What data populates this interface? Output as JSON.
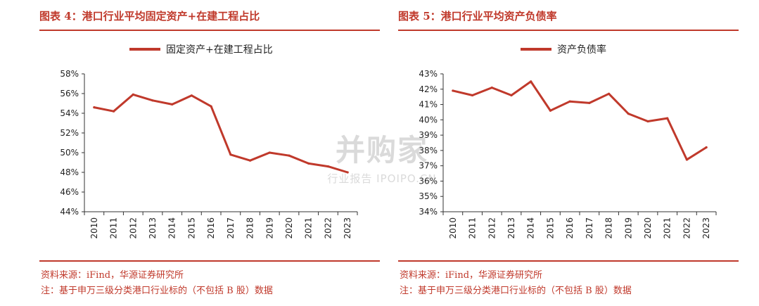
{
  "panels": [
    {
      "title": "图表 4：港口行业平均固定资产+在建工程占比",
      "legend": "固定资产+在建工程占比",
      "source": "资料来源：iFind，华源证券研究所",
      "note": "注：基于申万三级分类港口行业标的（不包括 B 股）数据"
    },
    {
      "title": "图表 5：港口行业平均资产负债率",
      "legend": "资产负债率",
      "source": "资料来源：iFind，华源证券研究所",
      "note": "注：基于申万三级分类港口行业标的（不包括 B 股）数据"
    }
  ],
  "watermark": {
    "main": "并购家",
    "sub": "行业报告 IPOIPO.CN"
  },
  "colors": {
    "series": "#c0392b",
    "accent": "#c0392b"
  },
  "chart_data": [
    {
      "type": "line",
      "title": "",
      "xlabel": "",
      "ylabel": "",
      "x": [
        "2010",
        "2011",
        "2012",
        "2013",
        "2014",
        "2015",
        "2016",
        "2017",
        "2018",
        "2019",
        "2020",
        "2021",
        "2022",
        "2023"
      ],
      "series": [
        {
          "name": "固定资产+在建工程占比",
          "values": [
            54.6,
            54.2,
            55.9,
            55.3,
            54.9,
            55.8,
            54.7,
            49.8,
            49.2,
            50.0,
            49.7,
            48.9,
            48.6,
            48.0
          ]
        }
      ],
      "ylim": [
        44,
        58
      ],
      "yticks": [
        "44%",
        "46%",
        "48%",
        "50%",
        "52%",
        "54%",
        "56%",
        "58%"
      ],
      "grid": false,
      "legend_position": "top-center"
    },
    {
      "type": "line",
      "title": "",
      "xlabel": "",
      "ylabel": "",
      "x": [
        "2010",
        "2011",
        "2012",
        "2013",
        "2014",
        "2015",
        "2016",
        "2017",
        "2018",
        "2019",
        "2020",
        "2021",
        "2022",
        "2023"
      ],
      "series": [
        {
          "name": "资产负债率",
          "values": [
            41.9,
            41.6,
            42.1,
            41.6,
            42.5,
            40.6,
            41.2,
            41.1,
            41.7,
            40.4,
            39.9,
            40.1,
            37.4,
            38.2
          ]
        }
      ],
      "ylim": [
        34,
        43
      ],
      "yticks": [
        "34%",
        "35%",
        "36%",
        "37%",
        "38%",
        "39%",
        "40%",
        "41%",
        "42%",
        "43%"
      ],
      "grid": false,
      "legend_position": "top-center"
    }
  ]
}
